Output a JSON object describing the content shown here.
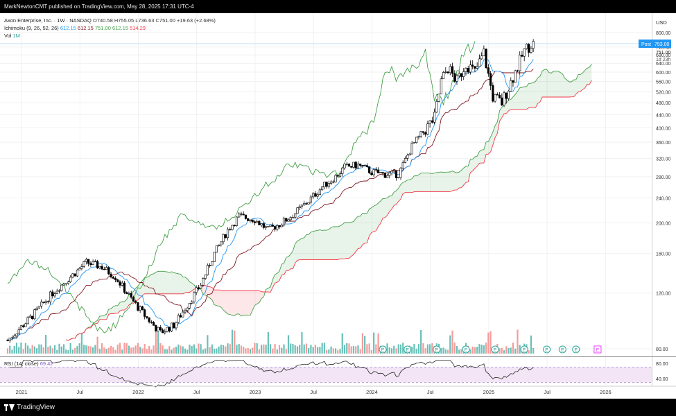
{
  "header": {
    "publish_line": "MarkNewtonCMT published on TradingView.com, May 28, 2025 17:31 UTC-4"
  },
  "footer": {
    "brand": "TradingView"
  },
  "legend": {
    "title": "Axon Enterprise, Inc. · 1W · NASDAQ",
    "ohlc": [
      {
        "k": "O",
        "v": "740.58"
      },
      {
        "k": "H",
        "v": "755.05"
      },
      {
        "k": "L",
        "v": "736.63"
      },
      {
        "k": "C",
        "v": "751.00"
      }
    ],
    "change": "+19.63 (+2.68%)",
    "ichimoku_label": "Ichimoku (9, 26, 52, 26)",
    "ichimoku_values": [
      {
        "v": "612.15",
        "color": "#2196f3"
      },
      {
        "v": "612.15",
        "color": "#801922"
      },
      {
        "v": "751.00",
        "color": "#43a047"
      },
      {
        "v": "612.15",
        "color": "#43a047"
      },
      {
        "v": "514.29",
        "color": "#f23645"
      }
    ],
    "vol_label": "Vol",
    "vol_value": "1M",
    "rsi_label": "RSI (14, close)",
    "rsi_value": "69.42"
  },
  "price_axis": {
    "currency": "USD",
    "post_label": "Post",
    "post_value": "753.00",
    "last_price": "751.00",
    "countdown": "1d 23h"
  },
  "colors": {
    "up": "#ffffff",
    "down": "#000000",
    "wick": "#000000",
    "conversion": "#2196f3",
    "base": "#801922",
    "lagging": "#43a047",
    "span_a": "#43a047",
    "span_b": "#f23645",
    "cloud_up": "rgba(67,160,71,0.12)",
    "cloud_down": "rgba(242,54,69,0.12)",
    "vol_up": "#4db6ac",
    "vol_down": "#f48a8a",
    "rsi_line": "#222222",
    "rsi_band": "#f3e5f5"
  },
  "chart_data": {
    "type": "candlestick",
    "symbol": "Axon Enterprise, Inc.",
    "interval": "1W",
    "x_tick_labels": [
      "2021",
      "Jul",
      "2022",
      "Jul",
      "2023",
      "Jul",
      "2024",
      "Jul",
      "2025",
      "Jul",
      "2026"
    ],
    "y_axis": {
      "scale": "log",
      "tick_labels": [
        "800.00",
        "720.00",
        "680.00",
        "640.00",
        "600.00",
        "560.00",
        "520.00",
        "480.00",
        "440.00",
        "400.00",
        "360.00",
        "320.00",
        "280.00",
        "240.00",
        "200.00",
        "160.00",
        "120.00",
        "80.00"
      ],
      "range": [
        72,
        810
      ]
    },
    "rsi_axis": {
      "tick_labels": [
        "80.00",
        "40.00"
      ],
      "range": [
        10,
        90
      ],
      "overbought": 70,
      "oversold": 30
    },
    "price_anchors": [
      [
        0,
        85
      ],
      [
        10,
        100
      ],
      [
        20,
        120
      ],
      [
        28,
        135
      ],
      [
        35,
        150
      ],
      [
        42,
        145
      ],
      [
        48,
        135
      ],
      [
        55,
        115
      ],
      [
        62,
        100
      ],
      [
        68,
        90
      ],
      [
        74,
        95
      ],
      [
        80,
        110
      ],
      [
        86,
        128
      ],
      [
        92,
        160
      ],
      [
        98,
        190
      ],
      [
        103,
        210
      ],
      [
        110,
        205
      ],
      [
        116,
        190
      ],
      [
        122,
        200
      ],
      [
        128,
        215
      ],
      [
        134,
        235
      ],
      [
        140,
        260
      ],
      [
        146,
        280
      ],
      [
        150,
        300
      ],
      [
        156,
        305
      ],
      [
        162,
        290
      ],
      [
        168,
        285
      ],
      [
        174,
        285
      ],
      [
        180,
        350
      ],
      [
        186,
        395
      ],
      [
        190,
        430
      ],
      [
        193,
        560
      ],
      [
        196,
        620
      ],
      [
        200,
        560
      ],
      [
        204,
        640
      ],
      [
        208,
        600
      ],
      [
        212,
        690
      ],
      [
        216,
        500
      ],
      [
        220,
        480
      ],
      [
        225,
        580
      ],
      [
        230,
        700
      ],
      [
        234,
        751
      ]
    ],
    "last_close": 751.0,
    "events": {
      "earnings_marker_weeks": [
        167,
        178,
        191,
        204,
        217,
        230,
        240,
        247,
        253
      ],
      "dividend_marker_weeks": [],
      "upcoming_marker": "E"
    }
  }
}
